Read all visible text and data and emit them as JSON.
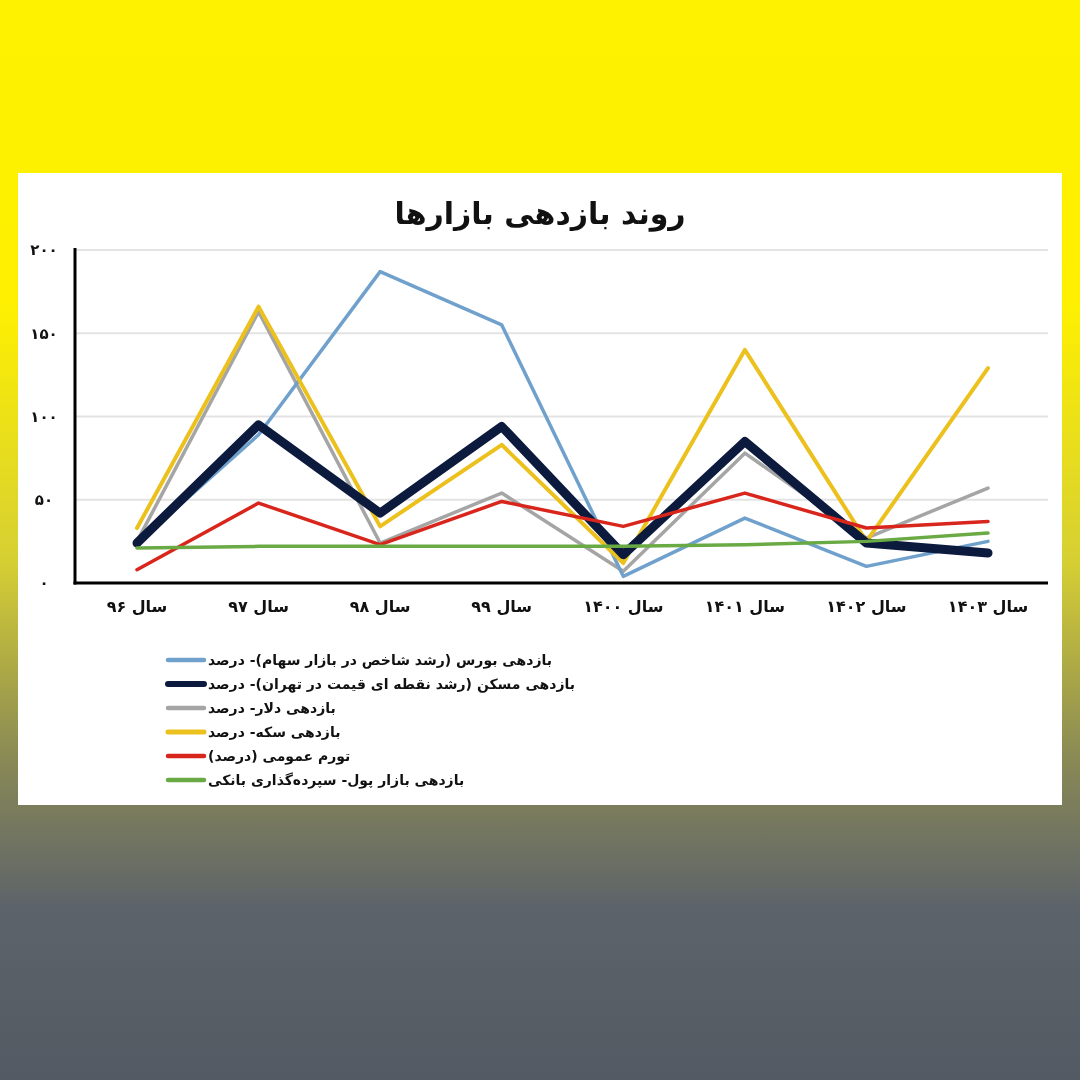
{
  "chart_data": {
    "type": "line",
    "title": "روند بازدهی بازارها",
    "categories": [
      "سال ۹۶",
      "سال ۹۷",
      "سال ۹۸",
      "سال ۹۹",
      "سال ۱۴۰۰",
      "سال ۱۴۰۱",
      "سال ۱۴۰۲",
      "سال ۱۴۰۳"
    ],
    "series": [
      {
        "name": "بازدهی بورس (رشد شاخص در بازار سهام)- درصد",
        "color": "#6fa1cc",
        "values": [
          24,
          89,
          187,
          155,
          4,
          39,
          10,
          25
        ]
      },
      {
        "name": "بازدهی مسکن (رشد نقطه ای قیمت در تهران)- درصد",
        "color": "#0c1a3d",
        "values": [
          24,
          95,
          42,
          94,
          17,
          85,
          24,
          18
        ]
      },
      {
        "name": "بازدهی دلار- درصد",
        "color": "#a5a5a5",
        "values": [
          25,
          163,
          24,
          54,
          7,
          78,
          27,
          57
        ]
      },
      {
        "name": "بازدهی سکه- درصد",
        "color": "#ecc11e",
        "values": [
          33,
          166,
          34,
          83,
          12,
          140,
          25,
          129
        ]
      },
      {
        "name": "تورم عمومی (درصد)",
        "color": "#d8261d",
        "values": [
          8,
          48,
          23,
          49,
          34,
          54,
          33,
          37
        ]
      },
      {
        "name": "بازدهی بازار پول- سپرده‌گذاری بانکی",
        "color": "#6aaa45",
        "values": [
          21,
          22,
          22,
          22,
          22,
          23,
          25,
          30
        ]
      }
    ],
    "ylim": [
      0,
      200
    ],
    "yticks": [
      {
        "value": 0,
        "label": "۰"
      },
      {
        "value": 50,
        "label": "۵۰"
      },
      {
        "value": 100,
        "label": "۱۰۰"
      },
      {
        "value": 150,
        "label": "۱۵۰"
      },
      {
        "value": 200,
        "label": "۲۰۰"
      }
    ],
    "grid": "y",
    "legend": "bottom left",
    "marker": "none",
    "line_style": "solid"
  }
}
